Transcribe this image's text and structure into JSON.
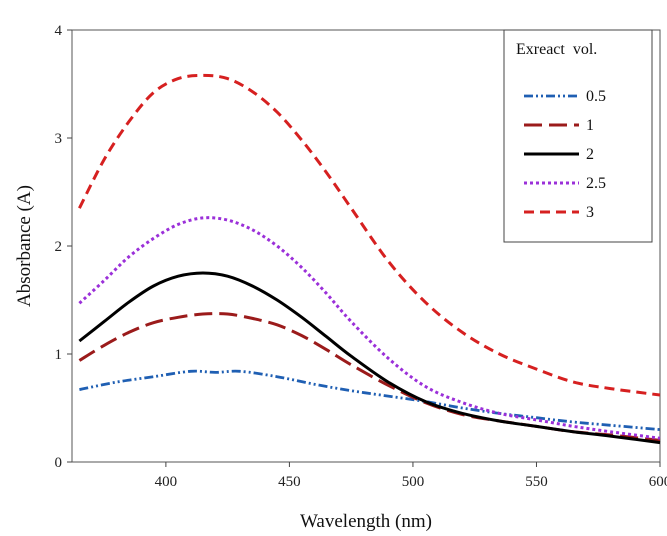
{
  "chart_data": {
    "type": "line",
    "xlabel": "Wavelength (nm)",
    "ylabel": "Absorbance (A)",
    "xlim": [
      362,
      600
    ],
    "ylim": [
      0,
      4
    ],
    "xticks": [
      400,
      450,
      500,
      550,
      600
    ],
    "yticks": [
      0,
      1,
      2,
      3,
      4
    ],
    "grid": false,
    "legend_title": "Exreact  vol.",
    "legend_position": "top-right",
    "series": [
      {
        "name": "0.5",
        "color": "#1f5fb3",
        "dash": "dash-dot-dot",
        "x": [
          365,
          380,
          395,
          410,
          420,
          430,
          445,
          460,
          475,
          490,
          505,
          520,
          535,
          550,
          565,
          580,
          600
        ],
        "y": [
          0.67,
          0.74,
          0.79,
          0.84,
          0.83,
          0.84,
          0.79,
          0.72,
          0.66,
          0.61,
          0.56,
          0.5,
          0.45,
          0.41,
          0.37,
          0.34,
          0.3
        ]
      },
      {
        "name": "1",
        "color": "#9b1b1b",
        "dash": "long-dash",
        "x": [
          365,
          375,
          385,
          395,
          405,
          415,
          425,
          435,
          445,
          455,
          465,
          475,
          490,
          505,
          520,
          535,
          550,
          565,
          580,
          600
        ],
        "y": [
          0.94,
          1.08,
          1.2,
          1.29,
          1.34,
          1.37,
          1.37,
          1.33,
          1.27,
          1.17,
          1.04,
          0.9,
          0.71,
          0.55,
          0.44,
          0.38,
          0.33,
          0.28,
          0.25,
          0.2
        ]
      },
      {
        "name": "2",
        "color": "#000000",
        "dash": "solid",
        "x": [
          365,
          375,
          385,
          395,
          405,
          415,
          425,
          435,
          445,
          455,
          465,
          475,
          490,
          505,
          520,
          535,
          550,
          565,
          580,
          600
        ],
        "y": [
          1.12,
          1.3,
          1.48,
          1.63,
          1.72,
          1.75,
          1.72,
          1.63,
          1.5,
          1.34,
          1.16,
          0.98,
          0.74,
          0.56,
          0.45,
          0.38,
          0.33,
          0.28,
          0.24,
          0.18
        ]
      },
      {
        "name": "2.5",
        "color": "#9b30d9",
        "dash": "dot",
        "x": [
          365,
          375,
          385,
          395,
          405,
          415,
          425,
          435,
          445,
          455,
          465,
          475,
          490,
          505,
          520,
          535,
          550,
          565,
          580,
          600
        ],
        "y": [
          1.47,
          1.68,
          1.9,
          2.07,
          2.2,
          2.26,
          2.24,
          2.15,
          2.0,
          1.8,
          1.56,
          1.3,
          0.96,
          0.7,
          0.55,
          0.45,
          0.39,
          0.33,
          0.28,
          0.22
        ]
      },
      {
        "name": "3",
        "color": "#d62020",
        "dash": "dash",
        "x": [
          365,
          375,
          385,
          395,
          405,
          415,
          425,
          435,
          445,
          455,
          465,
          475,
          490,
          505,
          520,
          535,
          550,
          565,
          580,
          600
        ],
        "y": [
          2.35,
          2.8,
          3.15,
          3.42,
          3.55,
          3.58,
          3.55,
          3.43,
          3.24,
          2.98,
          2.68,
          2.35,
          1.86,
          1.48,
          1.2,
          1.0,
          0.86,
          0.74,
          0.68,
          0.62
        ]
      }
    ]
  }
}
